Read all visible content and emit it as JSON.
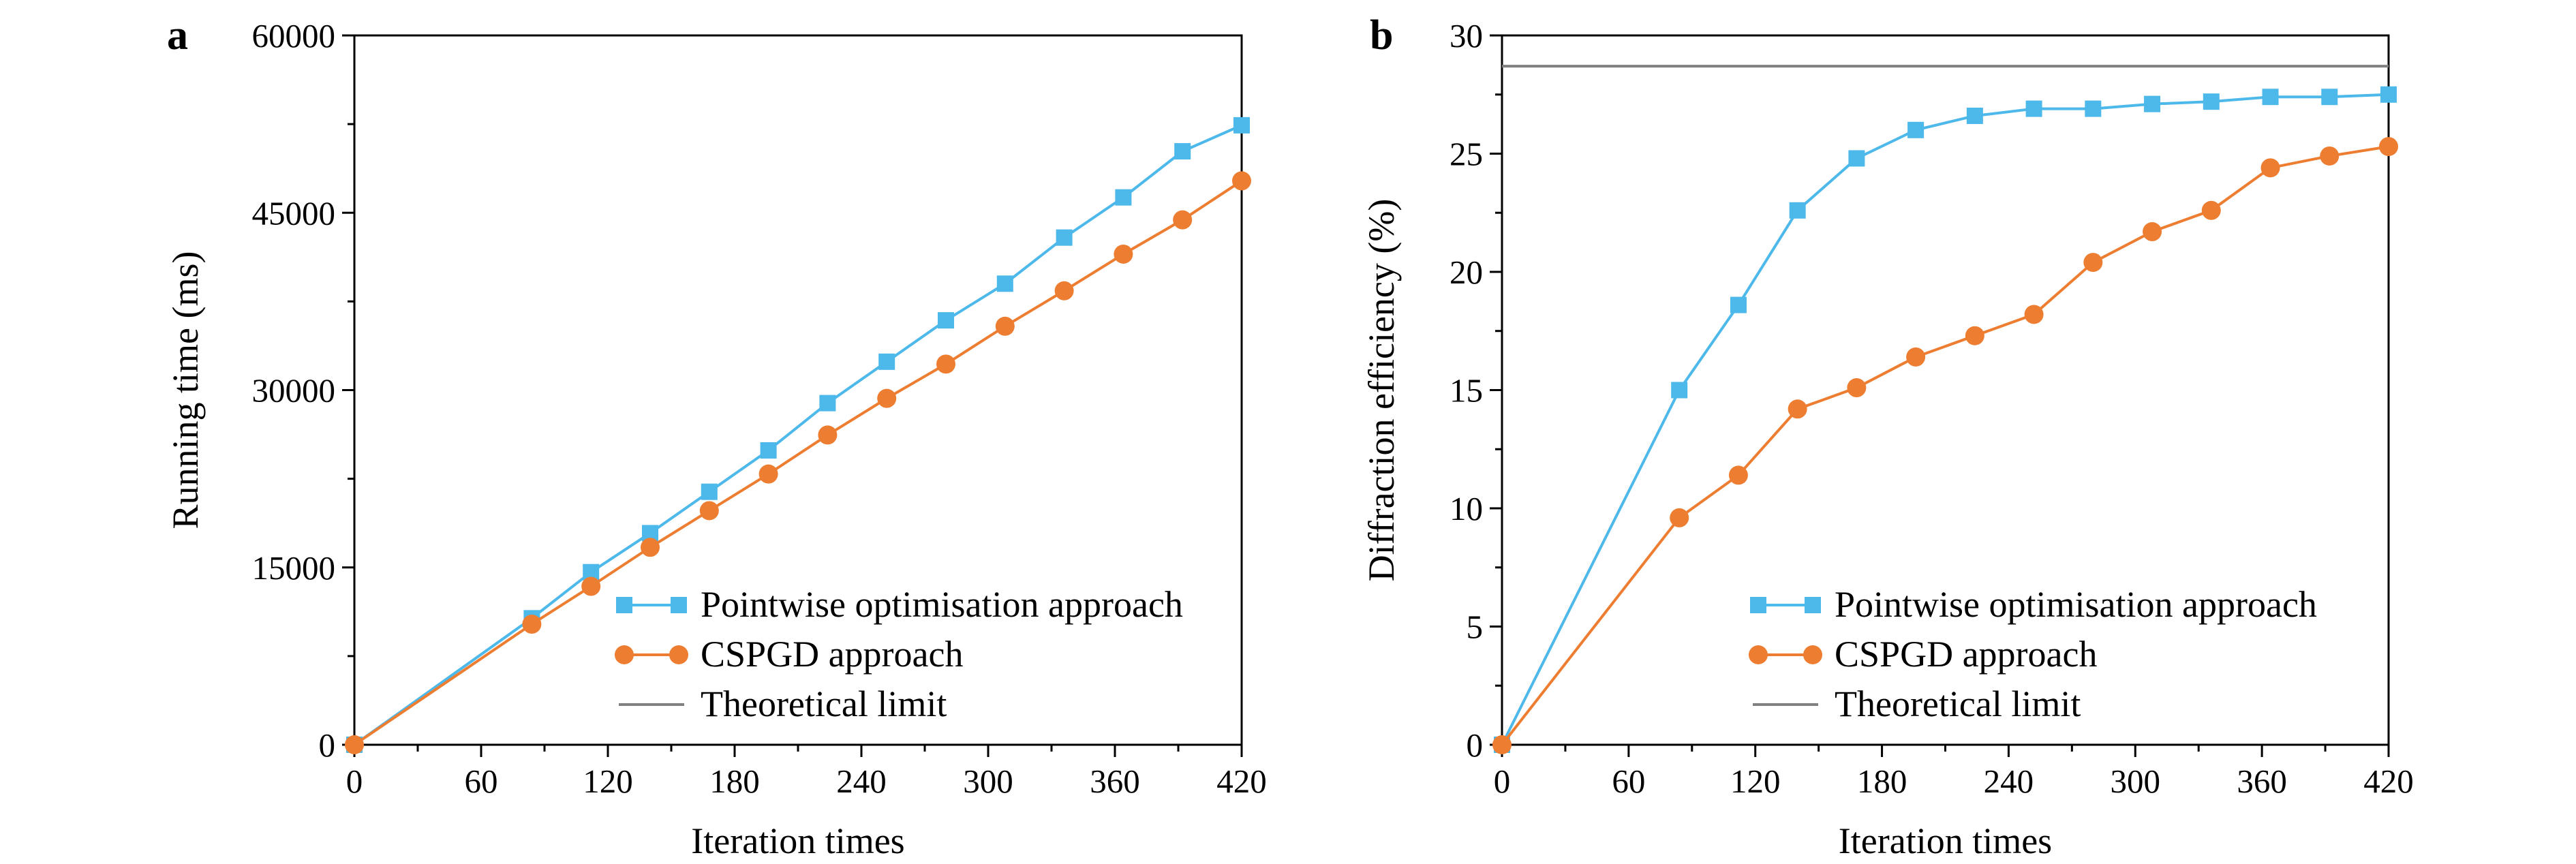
{
  "chart_data": [
    {
      "type": "line",
      "panel_label": "a",
      "title": "",
      "xlabel": "Iteration times",
      "ylabel": "Running time (ms)",
      "xlim": [
        0,
        420
      ],
      "ylim": [
        0,
        60000
      ],
      "xticks": [
        0,
        60,
        120,
        180,
        240,
        300,
        360,
        420
      ],
      "yticks": [
        0,
        15000,
        30000,
        45000,
        60000
      ],
      "grid": false,
      "legend_position": "bottom-right",
      "series": [
        {
          "name": "Pointwise optimisation approach",
          "color": "#4DB8EA",
          "marker": "square",
          "x": [
            0,
            84,
            112,
            140,
            168,
            196,
            224,
            252,
            280,
            308,
            336,
            364,
            392,
            420
          ],
          "y": [
            0,
            10700,
            14600,
            17900,
            21400,
            24900,
            28900,
            32400,
            35900,
            39000,
            42900,
            46300,
            50200,
            52400
          ]
        },
        {
          "name": "CSPGD approach",
          "color": "#ED7D31",
          "marker": "circle",
          "x": [
            0,
            84,
            112,
            140,
            168,
            196,
            224,
            252,
            280,
            308,
            336,
            364,
            392,
            420
          ],
          "y": [
            0,
            10200,
            13400,
            16700,
            19800,
            22900,
            26200,
            29300,
            32200,
            35400,
            38400,
            41500,
            44400,
            47700
          ]
        }
      ],
      "legend_entries": [
        {
          "name": "Pointwise optimisation approach",
          "color": "#4DB8EA",
          "marker": "square"
        },
        {
          "name": "CSPGD approach",
          "color": "#ED7D31",
          "marker": "circle"
        },
        {
          "name": "Theoretical limit",
          "color": "#808080",
          "marker": "none"
        }
      ]
    },
    {
      "type": "line",
      "panel_label": "b",
      "title": "",
      "xlabel": "Iteration times",
      "ylabel": "Diffraction efficiency (%)",
      "xlim": [
        0,
        420
      ],
      "ylim": [
        0,
        30
      ],
      "xticks": [
        0,
        60,
        120,
        180,
        240,
        300,
        360,
        420
      ],
      "yticks": [
        0,
        5,
        10,
        15,
        20,
        25,
        30
      ],
      "grid": false,
      "legend_position": "bottom-right",
      "series": [
        {
          "name": "Pointwise optimisation approach",
          "color": "#4DB8EA",
          "marker": "square",
          "x": [
            0,
            84,
            112,
            140,
            168,
            196,
            224,
            252,
            280,
            308,
            336,
            364,
            392,
            420
          ],
          "y": [
            0,
            15.0,
            18.6,
            22.6,
            24.8,
            26.0,
            26.6,
            26.9,
            26.9,
            27.1,
            27.2,
            27.4,
            27.4,
            27.5
          ]
        },
        {
          "name": "CSPGD approach",
          "color": "#ED7D31",
          "marker": "circle",
          "x": [
            0,
            84,
            112,
            140,
            168,
            196,
            224,
            252,
            280,
            308,
            336,
            364,
            392,
            420
          ],
          "y": [
            0,
            9.6,
            11.4,
            14.2,
            15.1,
            16.4,
            17.3,
            18.2,
            20.4,
            21.7,
            22.6,
            24.4,
            24.9,
            25.3
          ]
        },
        {
          "name": "Theoretical limit",
          "color": "#808080",
          "marker": "none",
          "x": [
            0,
            420
          ],
          "y": [
            28.7,
            28.7
          ]
        }
      ],
      "legend_entries": [
        {
          "name": "Pointwise optimisation approach",
          "color": "#4DB8EA",
          "marker": "square"
        },
        {
          "name": "CSPGD approach",
          "color": "#ED7D31",
          "marker": "circle"
        },
        {
          "name": "Theoretical limit",
          "color": "#808080",
          "marker": "none"
        }
      ]
    }
  ]
}
